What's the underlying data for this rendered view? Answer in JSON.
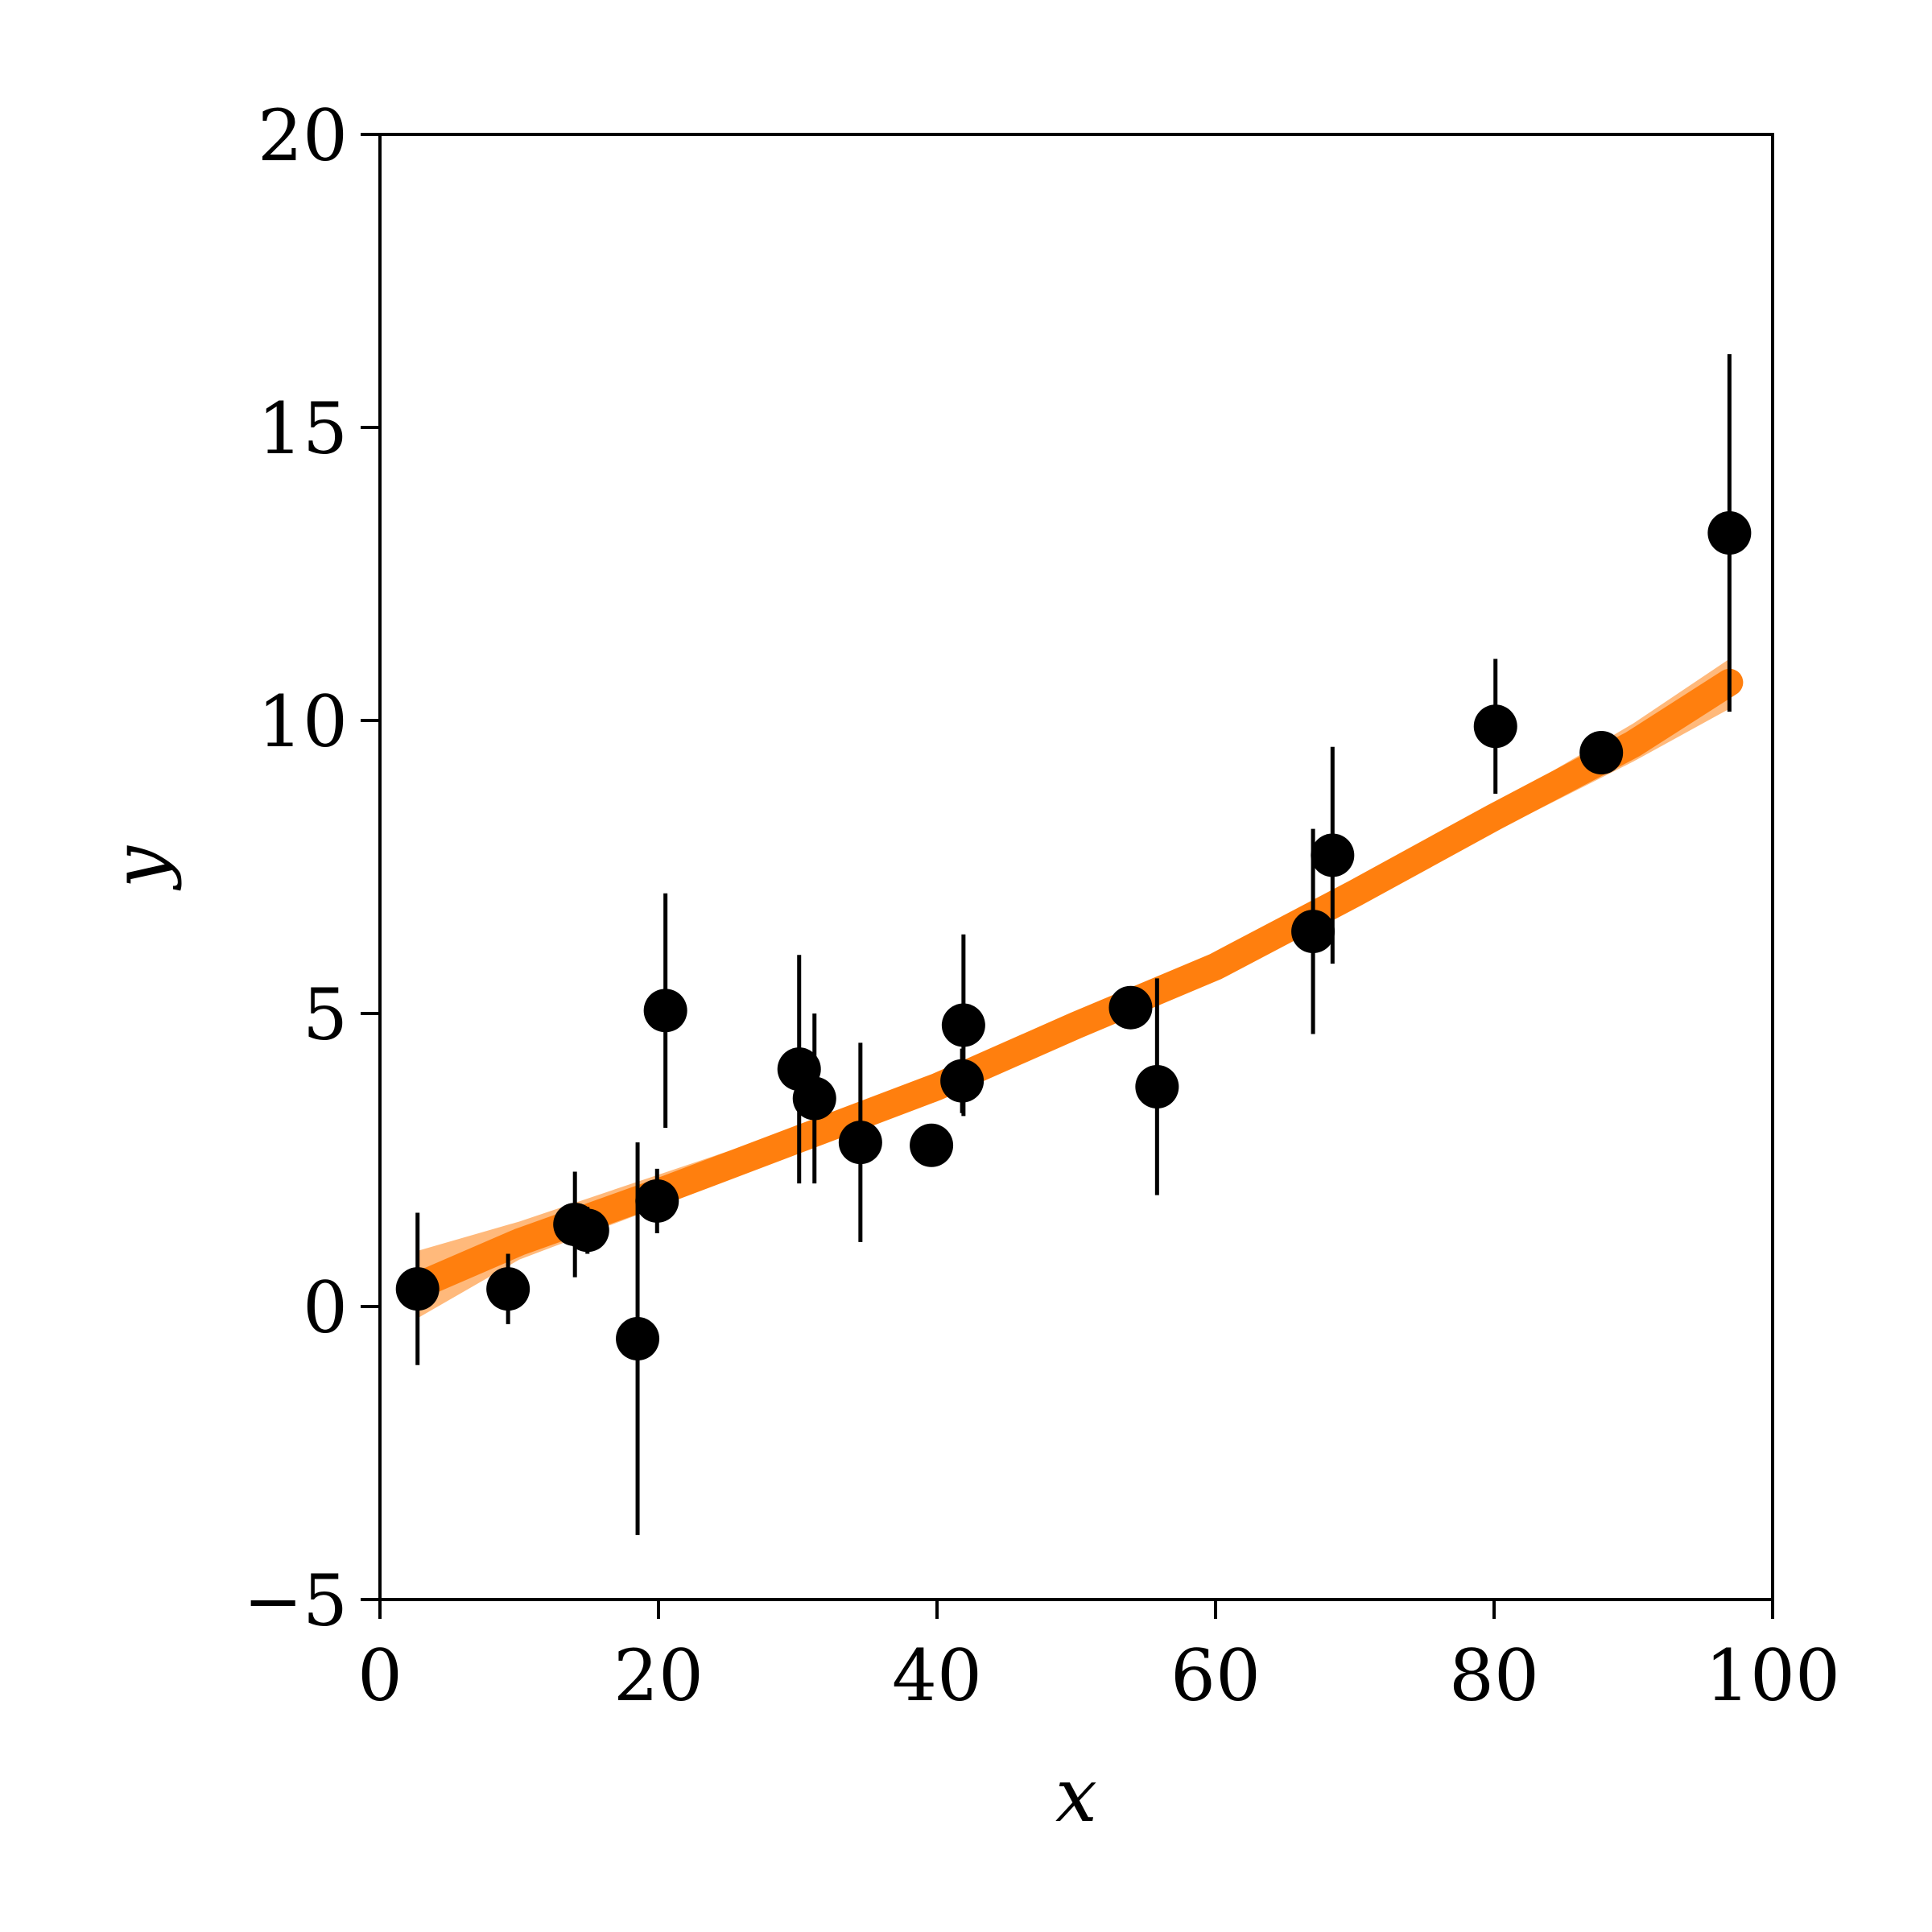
{
  "chart_data": {
    "type": "scatter",
    "title": "",
    "xlabel": "x",
    "ylabel": "y",
    "xlim": [
      0,
      100
    ],
    "ylim": [
      -5,
      20
    ],
    "grid": false,
    "x_ticks": [
      "0",
      "20",
      "40",
      "60",
      "80",
      "100"
    ],
    "y_ticks": [
      "−5",
      "0",
      "5",
      "10",
      "15",
      "20"
    ],
    "colors": {
      "points": "#000000",
      "fit": "#ff7f0e"
    },
    "points": [
      {
        "x": 2.7,
        "y": 0.3,
        "err": 1.3
      },
      {
        "x": 9.2,
        "y": 0.3,
        "err": 0.6
      },
      {
        "x": 14.0,
        "y": 1.4,
        "err": 0.9
      },
      {
        "x": 14.9,
        "y": 1.3,
        "err": 0.4
      },
      {
        "x": 18.5,
        "y": -0.55,
        "err": 3.35
      },
      {
        "x": 19.9,
        "y": 1.8,
        "err": 0.55
      },
      {
        "x": 20.5,
        "y": 5.05,
        "err": 2.0
      },
      {
        "x": 30.1,
        "y": 4.05,
        "err": 1.95
      },
      {
        "x": 31.2,
        "y": 3.55,
        "err": 1.45
      },
      {
        "x": 34.5,
        "y": 2.8,
        "err": 1.7
      },
      {
        "x": 39.6,
        "y": 2.75,
        "err": 0.3
      },
      {
        "x": 41.8,
        "y": 3.85,
        "err": 0.55
      },
      {
        "x": 41.9,
        "y": 4.8,
        "err": 1.55
      },
      {
        "x": 53.9,
        "y": 5.1,
        "err": 0.3
      },
      {
        "x": 55.8,
        "y": 3.75,
        "err": 1.85
      },
      {
        "x": 67.0,
        "y": 6.4,
        "err": 1.75
      },
      {
        "x": 68.4,
        "y": 7.7,
        "err": 1.85
      },
      {
        "x": 80.1,
        "y": 9.9,
        "err": 1.15
      },
      {
        "x": 87.7,
        "y": 9.45,
        "err": 0.25
      },
      {
        "x": 96.9,
        "y": 13.2,
        "err": 3.05
      }
    ],
    "fit_band": {
      "x": [
        2.7,
        10,
        20,
        30,
        40,
        50,
        60,
        70,
        80,
        90,
        96.9
      ],
      "lower": [
        -0.2,
        0.8,
        1.7,
        2.7,
        3.5,
        4.6,
        5.7,
        6.9,
        8.1,
        9.3,
        10.2
      ],
      "upper": [
        0.95,
        1.45,
        2.25,
        3.05,
        3.95,
        4.95,
        5.9,
        7.2,
        8.55,
        9.95,
        11.05
      ],
      "center": [
        0.35,
        1.1,
        1.95,
        2.85,
        3.75,
        4.8,
        5.8,
        7.05,
        8.35,
        9.6,
        10.65
      ]
    }
  }
}
